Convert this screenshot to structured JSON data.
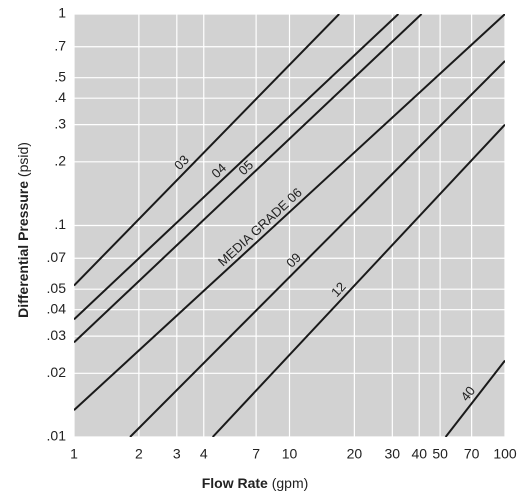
{
  "chart_data": {
    "type": "line",
    "x_label": "Flow Rate",
    "x_label_unit": "(gpm)",
    "y_label": "Differential Pressure",
    "y_label_unit": "(psid)",
    "x_log": true,
    "y_log": true,
    "grid": true,
    "xlim": [
      1,
      100
    ],
    "ylim": [
      0.01,
      1
    ],
    "xticks": [
      1,
      2,
      3,
      4,
      7,
      10,
      20,
      30,
      40,
      50,
      70,
      100
    ],
    "yticks": [
      1,
      {
        "value": 0.7,
        "label": ".7"
      },
      {
        "value": 0.5,
        "label": ".5"
      },
      {
        "value": 0.4,
        "label": ".4"
      },
      {
        "value": 0.3,
        "label": ".3"
      },
      {
        "value": 0.2,
        "label": ".2"
      },
      {
        "value": 0.1,
        "label": ".1"
      },
      {
        "value": 0.07,
        "label": ".07"
      },
      {
        "value": 0.05,
        "label": ".05"
      },
      {
        "value": 0.04,
        "label": ".04"
      },
      {
        "value": 0.03,
        "label": ".03"
      },
      {
        "value": 0.02,
        "label": ".02"
      },
      {
        "value": 0.01,
        "label": ".01"
      }
    ],
    "series": [
      {
        "name": "03",
        "color": "#1a1a1a",
        "x": [
          1,
          17
        ],
        "values": [
          0.052,
          1
        ]
      },
      {
        "name": "04",
        "color": "#1a1a1a",
        "x": [
          1,
          32
        ],
        "values": [
          0.036,
          1
        ]
      },
      {
        "name": "05",
        "color": "#1a1a1a",
        "x": [
          1,
          41
        ],
        "values": [
          0.028,
          1
        ]
      },
      {
        "name": "MEDIA GRADE 06",
        "color": "#1a1a1a",
        "x": [
          1,
          100
        ],
        "values": [
          0.0134,
          1
        ]
      },
      {
        "name": "09",
        "color": "#1a1a1a",
        "x": [
          1.82,
          100
        ],
        "values": [
          0.01,
          0.6
        ]
      },
      {
        "name": "12",
        "color": "#1a1a1a",
        "x": [
          4.4,
          100
        ],
        "values": [
          0.01,
          0.3
        ]
      },
      {
        "name": "40",
        "color": "#1a1a1a",
        "x": [
          53,
          100
        ],
        "values": [
          0.01,
          0.023
        ]
      }
    ]
  }
}
